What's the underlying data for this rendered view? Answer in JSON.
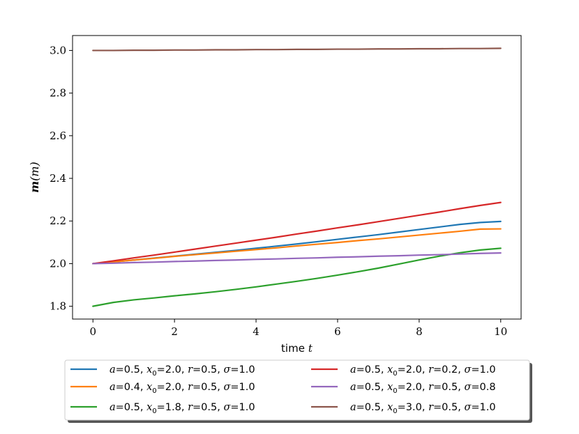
{
  "chart_data": {
    "type": "line",
    "xlabel": "time t",
    "xlabel_parts": {
      "text": "time",
      "var": "t"
    },
    "ylabel": "m(m)",
    "ylabel_parts": {
      "bold": "m",
      "rest": "(m)"
    },
    "xlim": [
      -0.5,
      10.5
    ],
    "ylim": [
      1.74,
      3.07
    ],
    "xticks": [
      0,
      2,
      4,
      6,
      8,
      10
    ],
    "xtick_labels": [
      "0",
      "2",
      "4",
      "6",
      "8",
      "10"
    ],
    "yticks": [
      1.8,
      2.0,
      2.2,
      2.4,
      2.6,
      2.8,
      3.0
    ],
    "ytick_labels": [
      "1.8",
      "2.0",
      "2.2",
      "2.4",
      "2.6",
      "2.8",
      "3.0"
    ],
    "grid": false,
    "legend_placement": "below the plot, two columns, with shadow",
    "x": [
      0,
      0.5,
      1,
      1.5,
      2,
      2.5,
      3,
      3.5,
      4,
      4.5,
      5,
      5.5,
      6,
      6.5,
      7,
      7.5,
      8,
      8.5,
      9,
      9.5,
      10
    ],
    "series": [
      {
        "name": "a=0.5, x0=2.0, r=0.5, σ=1.0",
        "label_parts": {
          "a": "0.5",
          "x0": "2.0",
          "r": "0.5",
          "sigma": "1.0"
        },
        "color": "#1f77b4",
        "values": [
          2.0,
          2.008,
          2.017,
          2.026,
          2.035,
          2.044,
          2.053,
          2.062,
          2.072,
          2.082,
          2.092,
          2.103,
          2.114,
          2.125,
          2.136,
          2.148,
          2.16,
          2.172,
          2.184,
          2.193,
          2.198
        ]
      },
      {
        "name": "a=0.4, x0=2.0, r=0.5, σ=1.0",
        "label_parts": {
          "a": "0.4",
          "x0": "2.0",
          "r": "0.5",
          "sigma": "1.0"
        },
        "color": "#ff7f0e",
        "values": [
          2.0,
          2.008,
          2.017,
          2.025,
          2.034,
          2.042,
          2.05,
          2.058,
          2.066,
          2.074,
          2.083,
          2.091,
          2.099,
          2.108,
          2.116,
          2.125,
          2.134,
          2.143,
          2.152,
          2.162,
          2.163
        ]
      },
      {
        "name": "a=0.5, x0=1.8, r=0.5, σ=1.0",
        "label_parts": {
          "a": "0.5",
          "x0": "1.8",
          "r": "0.5",
          "sigma": "1.0"
        },
        "color": "#2ca02c",
        "values": [
          1.8,
          1.818,
          1.83,
          1.839,
          1.849,
          1.858,
          1.868,
          1.879,
          1.891,
          1.904,
          1.917,
          1.931,
          1.946,
          1.962,
          1.979,
          1.998,
          2.017,
          2.035,
          2.051,
          2.064,
          2.072
        ]
      },
      {
        "name": "a=0.5, x0=2.0, r=0.2, σ=1.0",
        "label_parts": {
          "a": "0.5",
          "x0": "2.0",
          "r": "0.2",
          "sigma": "1.0"
        },
        "color": "#d62728",
        "values": [
          2.0,
          2.013,
          2.027,
          2.04,
          2.054,
          2.068,
          2.082,
          2.096,
          2.11,
          2.124,
          2.139,
          2.153,
          2.168,
          2.182,
          2.197,
          2.212,
          2.227,
          2.242,
          2.258,
          2.273,
          2.287
        ]
      },
      {
        "name": "a=0.5, x0=2.0, r=0.5, σ=0.8",
        "label_parts": {
          "a": "0.5",
          "x0": "2.0",
          "r": "0.5",
          "sigma": "0.8"
        },
        "color": "#9467bd",
        "values": [
          2.0,
          2.002,
          2.005,
          2.007,
          2.01,
          2.012,
          2.015,
          2.017,
          2.02,
          2.022,
          2.025,
          2.027,
          2.03,
          2.032,
          2.035,
          2.037,
          2.04,
          2.042,
          2.045,
          2.048,
          2.05
        ]
      },
      {
        "name": "a=0.5, x0=3.0, r=0.5, σ=1.0",
        "label_parts": {
          "a": "0.5",
          "x0": "3.0",
          "r": "0.5",
          "sigma": "1.0"
        },
        "color": "#8c564b",
        "values": [
          3.0,
          3.0,
          3.001,
          3.001,
          3.002,
          3.002,
          3.003,
          3.003,
          3.004,
          3.004,
          3.005,
          3.005,
          3.006,
          3.006,
          3.007,
          3.007,
          3.008,
          3.008,
          3.009,
          3.009,
          3.01
        ]
      }
    ]
  }
}
